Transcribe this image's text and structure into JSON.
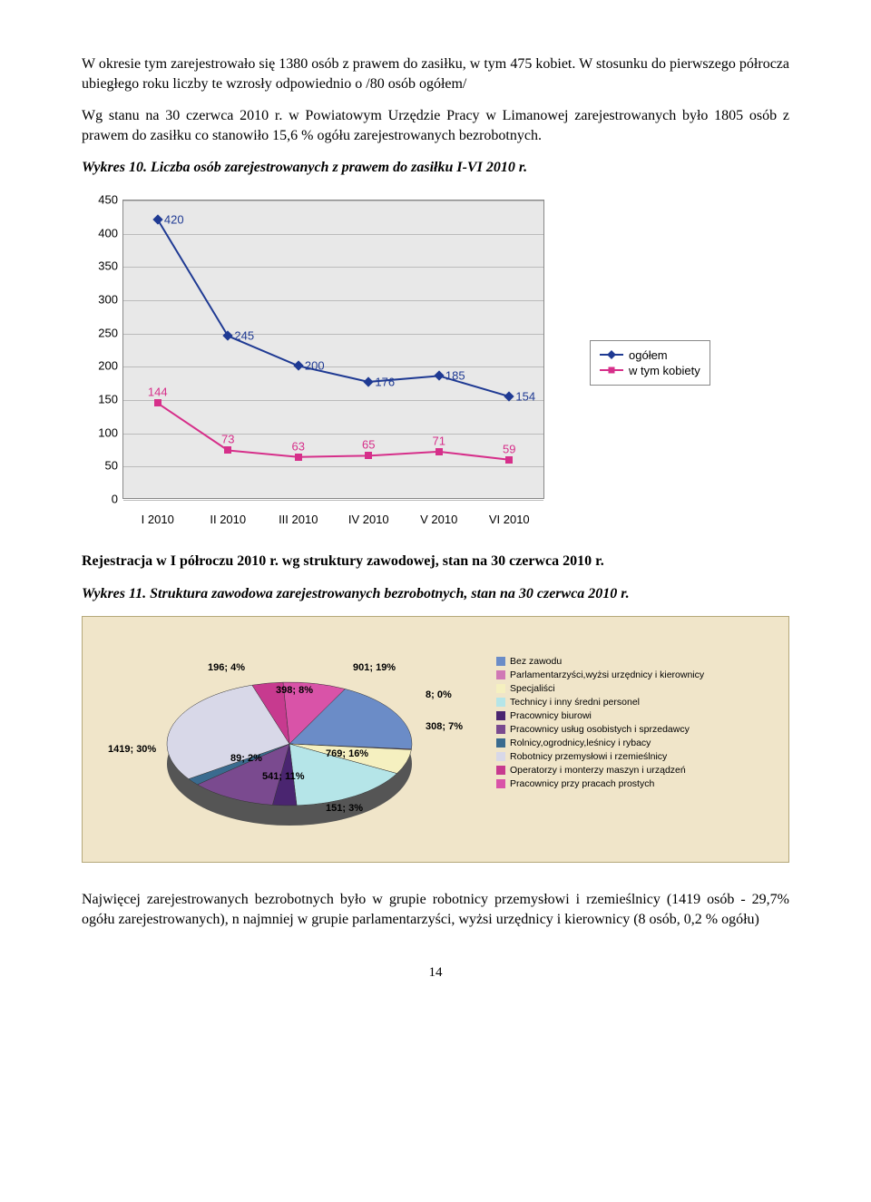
{
  "para1": "W okresie tym zarejestrowało się 1380 osób z prawem do zasiłku, w tym 475 kobiet. W stosunku do pierwszego półrocza ubiegłego roku liczby te wzrosły odpowiednio o /80 osób ogółem/",
  "para2": "Wg stanu na 30 czerwca 2010 r. w Powiatowym Urzędzie Pracy w Limanowej zarejestrowanych było 1805  osób z prawem do zasiłku co stanowiło  15,6 % ogółu zarejestrowanych bezrobotnych.",
  "wykres10": "Wykres 10. Liczba osób zarejestrowanych z prawem do zasiłku I-VI 2010 r.",
  "chart1": {
    "ylim": [
      0,
      450
    ],
    "ytick_step": 50,
    "yticks": [
      0,
      50,
      100,
      150,
      200,
      250,
      300,
      350,
      400,
      450
    ],
    "categories": [
      "I 2010",
      "II 2010",
      "III 2010",
      "IV 2010",
      "V 2010",
      "VI 2010"
    ],
    "series": [
      {
        "name": "ogółem",
        "color": "#1f3a93",
        "marker": "diamond",
        "values": [
          420,
          245,
          200,
          176,
          185,
          154
        ]
      },
      {
        "name": "w tym kobiety",
        "color": "#d62f8a",
        "marker": "square",
        "values": [
          144,
          73,
          63,
          65,
          71,
          59
        ]
      }
    ],
    "plot_bg": "#e8e8e8",
    "grid_color": "#bbbbbb",
    "font_family": "Arial",
    "label_fontsize": 13
  },
  "para3": "Rejestracja w I półroczu 2010 r. wg struktury zawodowej, stan na 30 czerwca 2010 r.",
  "wykres11": "Wykres 11. Struktura zawodowa zarejestrowanych bezrobotnych, stan na 30 czerwca 2010 r.",
  "chart2": {
    "background": "#f0e5c9",
    "slices": [
      {
        "label": "Bez zawodu",
        "value": 901,
        "pct": "19%",
        "color": "#6b8cc7"
      },
      {
        "label": "Parlamentarzyści,wyżsi urzędnicy i kierownicy",
        "value": 8,
        "pct": "0%",
        "color": "#d078b5"
      },
      {
        "label": "Specjaliści",
        "value": 308,
        "pct": "7%",
        "color": "#f5f0c0"
      },
      {
        "label": "Technicy i inny średni personel",
        "value": 769,
        "pct": "16%",
        "color": "#b5e5e8"
      },
      {
        "label": "Pracownicy biurowi",
        "value": 151,
        "pct": "3%",
        "color": "#4a2570"
      },
      {
        "label": "Pracownicy usług osobistych i sprzedawcy",
        "value": 541,
        "pct": "11%",
        "color": "#7a4a8f"
      },
      {
        "label": "Rolnicy,ogrodnicy,leśnicy i rybacy",
        "value": 89,
        "pct": "2%",
        "color": "#3a6b8f"
      },
      {
        "label": "Robotnicy przemysłowi i rzemieślnicy",
        "value": 1419,
        "pct": "30%",
        "color": "#d8d8e8"
      },
      {
        "label": "Operatorzy i monterzy maszyn i urządzeń",
        "value": 196,
        "pct": "4%",
        "color": "#c73a8f"
      },
      {
        "label": "Pracownicy przy pracach prostych",
        "value": 398,
        "pct": "8%",
        "color": "#d953a8"
      }
    ]
  },
  "para4": "Najwięcej zarejestrowanych bezrobotnych było w grupie robotnicy przemysłowi i rzemieślnicy (1419 osób - 29,7% ogółu zarejestrowanych), n najmniej w grupie parlamentarzyści, wyżsi urzędnicy i kierownicy (8 osób,  0,2  % ogółu)",
  "pagenum": "14"
}
